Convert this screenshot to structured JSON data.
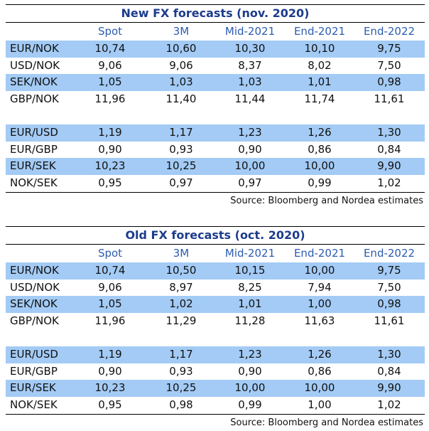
{
  "tables": [
    {
      "title": "New FX forecasts (nov. 2020)",
      "columns": [
        "Spot",
        "3M",
        "Mid-2021",
        "End-2021",
        "End-2022"
      ],
      "groups": [
        [
          {
            "label": "EUR/NOK",
            "values": [
              "10,74",
              "10,60",
              "10,30",
              "10,10",
              "9,75"
            ]
          },
          {
            "label": "USD/NOK",
            "values": [
              "9,06",
              "9,06",
              "8,37",
              "8,02",
              "7,50"
            ]
          },
          {
            "label": "SEK/NOK",
            "values": [
              "1,05",
              "1,03",
              "1,03",
              "1,01",
              "0,98"
            ]
          },
          {
            "label": "GBP/NOK",
            "values": [
              "11,96",
              "11,40",
              "11,44",
              "11,74",
              "11,61"
            ]
          }
        ],
        [
          {
            "label": "EUR/USD",
            "values": [
              "1,19",
              "1,17",
              "1,23",
              "1,26",
              "1,30"
            ]
          },
          {
            "label": "EUR/GBP",
            "values": [
              "0,90",
              "0,93",
              "0,90",
              "0,86",
              "0,84"
            ]
          },
          {
            "label": "EUR/SEK",
            "values": [
              "10,23",
              "10,25",
              "10,00",
              "10,00",
              "9,90"
            ]
          },
          {
            "label": "NOK/SEK",
            "values": [
              "0,95",
              "0,97",
              "0,97",
              "0,99",
              "1,02"
            ]
          }
        ]
      ],
      "source": "Source: Bloomberg and Nordea estimates"
    },
    {
      "title": "Old FX forecasts (oct. 2020)",
      "columns": [
        "Spot",
        "3M",
        "Mid-2021",
        "End-2021",
        "End-2022"
      ],
      "groups": [
        [
          {
            "label": "EUR/NOK",
            "values": [
              "10,74",
              "10,50",
              "10,15",
              "10,00",
              "9,75"
            ]
          },
          {
            "label": "USD/NOK",
            "values": [
              "9,06",
              "8,97",
              "8,25",
              "7,94",
              "7,50"
            ]
          },
          {
            "label": "SEK/NOK",
            "values": [
              "1,05",
              "1,02",
              "1,01",
              "1,00",
              "0,98"
            ]
          },
          {
            "label": "GBP/NOK",
            "values": [
              "11,96",
              "11,29",
              "11,28",
              "11,63",
              "11,61"
            ]
          }
        ],
        [
          {
            "label": "EUR/USD",
            "values": [
              "1,19",
              "1,17",
              "1,23",
              "1,26",
              "1,30"
            ]
          },
          {
            "label": "EUR/GBP",
            "values": [
              "0,90",
              "0,93",
              "0,90",
              "0,86",
              "0,84"
            ]
          },
          {
            "label": "EUR/SEK",
            "values": [
              "10,23",
              "10,25",
              "10,00",
              "10,00",
              "9,90"
            ]
          },
          {
            "label": "NOK/SEK",
            "values": [
              "0,95",
              "0,98",
              "0,99",
              "1,00",
              "1,02"
            ]
          }
        ]
      ],
      "source": "Source: Bloomberg and Nordea estimates"
    }
  ]
}
